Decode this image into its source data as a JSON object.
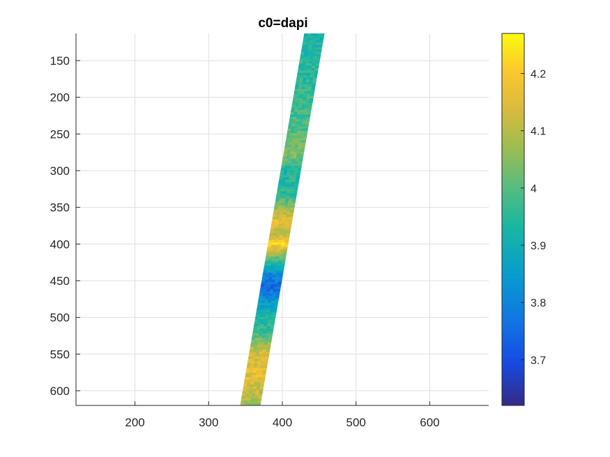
{
  "chart_data": {
    "type": "heatmap",
    "title": "c0=dapi",
    "xlabel": "",
    "ylabel": "",
    "xlim": [
      120,
      680
    ],
    "ylim": [
      620,
      113
    ],
    "y_reversed": true,
    "grid": true,
    "xticks": [
      200,
      300,
      400,
      500,
      600
    ],
    "xtick_labels": [
      "200",
      "300",
      "400",
      "500",
      "600"
    ],
    "yticks": [
      150,
      200,
      250,
      300,
      350,
      400,
      450,
      500,
      550,
      600
    ],
    "ytick_labels": [
      "150",
      "200",
      "250",
      "300",
      "350",
      "400",
      "450",
      "500",
      "550",
      "600"
    ],
    "strip": {
      "top_edge": [
        [
          430,
          113
        ],
        [
          457,
          113
        ]
      ],
      "bottom_edge": [
        [
          343,
          620
        ],
        [
          370,
          620
        ]
      ]
    },
    "profile": [
      {
        "y": 115,
        "v": 3.92
      },
      {
        "y": 150,
        "v": 3.94
      },
      {
        "y": 200,
        "v": 3.96
      },
      {
        "y": 250,
        "v": 4.0
      },
      {
        "y": 280,
        "v": 4.04
      },
      {
        "y": 300,
        "v": 3.93
      },
      {
        "y": 330,
        "v": 3.95
      },
      {
        "y": 350,
        "v": 4.05
      },
      {
        "y": 370,
        "v": 4.17
      },
      {
        "y": 385,
        "v": 4.1
      },
      {
        "y": 400,
        "v": 4.22
      },
      {
        "y": 420,
        "v": 4.0
      },
      {
        "y": 440,
        "v": 3.82
      },
      {
        "y": 460,
        "v": 3.74
      },
      {
        "y": 480,
        "v": 3.86
      },
      {
        "y": 500,
        "v": 3.92
      },
      {
        "y": 520,
        "v": 3.97
      },
      {
        "y": 545,
        "v": 4.12
      },
      {
        "y": 575,
        "v": 4.17
      },
      {
        "y": 600,
        "v": 4.12
      },
      {
        "y": 620,
        "v": 4.07
      }
    ],
    "colorbar": {
      "colormap": "parula",
      "clim": [
        3.62,
        4.27
      ],
      "ticks": [
        3.7,
        3.8,
        3.9,
        4.0,
        4.1,
        4.2
      ],
      "tick_labels": [
        "3.7",
        "3.8",
        "3.9",
        "4",
        "4.1",
        "4.2"
      ],
      "location": "right"
    }
  }
}
